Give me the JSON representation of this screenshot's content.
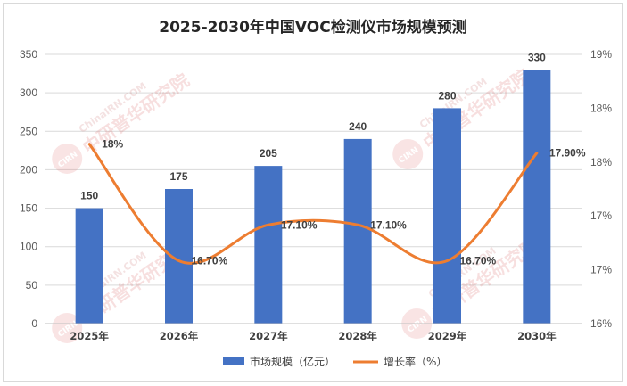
{
  "chart_data": {
    "type": "bar",
    "title": "2025-2030年中国VOC检测仪市场规模预测",
    "categories": [
      "2025年",
      "2026年",
      "2027年",
      "2028年",
      "2029年",
      "2030年"
    ],
    "series": [
      {
        "name": "市场规模（亿元）",
        "type": "bar",
        "axis": "left",
        "color": "#4472C4",
        "values": [
          150,
          175,
          205,
          240,
          280,
          330
        ],
        "labels": [
          "150",
          "175",
          "205",
          "240",
          "280",
          "330"
        ]
      },
      {
        "name": "增长率（%）",
        "type": "line",
        "smooth": true,
        "axis": "right",
        "color": "#ED7D31",
        "values": [
          18.0,
          16.7,
          17.1,
          17.1,
          16.7,
          17.9
        ],
        "labels": [
          "18%",
          "16.70%",
          "17.10%",
          "17.10%",
          "16.70%",
          "17.90%"
        ]
      }
    ],
    "y_left": {
      "ylim": [
        0,
        350
      ],
      "ticks": [
        "0",
        "50",
        "100",
        "150",
        "200",
        "250",
        "300",
        "350"
      ]
    },
    "y_right": {
      "ylim": [
        16.0,
        19.0
      ],
      "ticks": [
        "16%",
        "17%",
        "17%",
        "18%",
        "18%",
        "19%"
      ]
    },
    "grid": true,
    "legend_position": "bottom"
  },
  "watermark": {
    "badge": "CIRN",
    "cn": "中研普华研究院",
    "en": "ChinaIRN.COM"
  }
}
